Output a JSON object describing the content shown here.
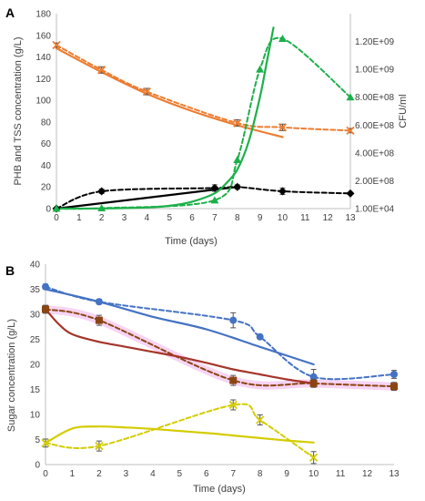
{
  "colors": {
    "orange": "#ED7D31",
    "green": "#1DB04A",
    "black": "#000000",
    "blue": "#4472C4",
    "darkred": "#A5352A",
    "brown": "#8B4513",
    "yellow": "#D4CC00",
    "pinkband": "#F4C6F0",
    "axis": "#BFBFBF",
    "errorbar": "#555555"
  },
  "chart_data": [
    {
      "type": "line",
      "panel_label": "A",
      "xlabel": "Time (days)",
      "ylabel": "PHB and TSS concentration (g/L)",
      "y2label": "CFU/ml",
      "xlim": [
        0,
        13
      ],
      "xticks": [
        "0",
        "1",
        "2",
        "3",
        "4",
        "5",
        "6",
        "7",
        "8",
        "9",
        "10",
        "11",
        "12",
        "13"
      ],
      "ylim": [
        0,
        180
      ],
      "yticks": [
        "0",
        "20",
        "40",
        "60",
        "80",
        "100",
        "120",
        "140",
        "160",
        "180"
      ],
      "y2lim": [
        10000,
        1400000000
      ],
      "y2ticks": [
        "1.00E+04",
        "2.00E+08",
        "4.00E+08",
        "6.00E+08",
        "8.00E+08",
        "1.00E+09",
        "1.20E+09"
      ],
      "grid": false,
      "series": [
        {
          "key": "tss_measured",
          "axis": "left",
          "color": "orange",
          "dash": true,
          "marker": "x",
          "x": [
            0,
            2,
            4,
            8,
            10,
            13
          ],
          "y": [
            151,
            128,
            108,
            79,
            75,
            72
          ],
          "err": [
            2,
            3,
            3,
            3,
            3,
            2
          ]
        },
        {
          "key": "tss_model",
          "axis": "left",
          "color": "orange",
          "dash": false,
          "marker": "none",
          "x": [
            0,
            2,
            4,
            6,
            8,
            10
          ],
          "y": [
            148,
            126,
            106,
            90,
            77,
            66
          ]
        },
        {
          "key": "phb_measured",
          "axis": "left",
          "color": "black",
          "dash": true,
          "marker": "diamond",
          "x": [
            0,
            2,
            7,
            8,
            10,
            13
          ],
          "y": [
            0,
            16,
            19,
            20,
            16,
            14
          ],
          "err": [
            0,
            2,
            3,
            2,
            3,
            0
          ]
        },
        {
          "key": "phb_model",
          "axis": "left",
          "color": "black",
          "dash": false,
          "marker": "none",
          "x": [
            0,
            8
          ],
          "y": [
            0,
            20
          ]
        },
        {
          "key": "cfu_measured",
          "axis": "right",
          "color": "green",
          "dash": true,
          "marker": "triangle",
          "x": [
            0,
            2,
            7,
            8,
            9,
            10,
            13
          ],
          "y": [
            10000,
            3000000,
            60000000,
            350000000,
            1000000000,
            1220000000,
            800000000
          ]
        },
        {
          "key": "cfu_model",
          "axis": "right",
          "color": "green",
          "dash": false,
          "marker": "none",
          "x": [
            0,
            2,
            4,
            5,
            6,
            7,
            7.5,
            8,
            8.5,
            9,
            9.3,
            9.6,
            9.8
          ],
          "y": [
            10000,
            1000000,
            8000000,
            20000000,
            50000000,
            110000000,
            180000000,
            280000000,
            480000000,
            800000000,
            1050000000,
            1300000000,
            1430000000
          ]
        }
      ]
    },
    {
      "type": "line",
      "panel_label": "B",
      "xlabel": "Time (days)",
      "ylabel": "Sugar concentration (g/L)",
      "xlim": [
        0,
        13
      ],
      "xticks": [
        "0",
        "1",
        "2",
        "3",
        "4",
        "5",
        "6",
        "7",
        "8",
        "9",
        "10",
        "11",
        "12",
        "13"
      ],
      "ylim": [
        0,
        40
      ],
      "yticks": [
        "0",
        "5",
        "10",
        "15",
        "20",
        "25",
        "30",
        "35",
        "40"
      ],
      "grid": false,
      "series": [
        {
          "key": "blue_measured",
          "color": "blue",
          "dash": true,
          "marker": "circle",
          "x": [
            0,
            2,
            7,
            8,
            10,
            13
          ],
          "y": [
            35.5,
            32.5,
            28.8,
            25.5,
            17.5,
            18
          ],
          "err": [
            0.5,
            0.5,
            1.5,
            0.3,
            1.5,
            0.8
          ]
        },
        {
          "key": "blue_model",
          "color": "blue",
          "dash": false,
          "marker": "none",
          "x": [
            0,
            2,
            4,
            6,
            8,
            10
          ],
          "y": [
            35,
            32.5,
            29.5,
            27,
            23.5,
            20
          ]
        },
        {
          "key": "red_measured",
          "color": "brown",
          "dash": true,
          "marker": "square",
          "x": [
            0,
            2,
            7,
            10,
            13
          ],
          "y": [
            31,
            28.8,
            16.8,
            16.2,
            15.6
          ],
          "err": [
            0.8,
            1,
            1,
            0.8,
            0.8
          ]
        },
        {
          "key": "red_model",
          "color": "darkred",
          "dash": false,
          "marker": "none",
          "x": [
            0,
            0.5,
            1,
            2,
            3,
            4,
            5,
            6,
            7,
            8,
            9,
            10
          ],
          "y": [
            31,
            28,
            26,
            24.5,
            23.5,
            22.5,
            21.5,
            20.3,
            19,
            18,
            17,
            16.2
          ]
        },
        {
          "key": "yellow_measured",
          "color": "yellow",
          "dash": true,
          "marker": "x",
          "x": [
            0,
            2,
            7,
            8,
            10
          ],
          "y": [
            4.3,
            3.7,
            11.9,
            8.9,
            1.4
          ],
          "err": [
            0.8,
            1,
            1,
            1,
            1.2
          ]
        },
        {
          "key": "yellow_model",
          "color": "yellow",
          "dash": false,
          "marker": "none",
          "x": [
            0,
            1,
            2,
            3,
            4,
            5,
            6,
            7,
            8,
            9,
            10
          ],
          "y": [
            4.3,
            7.2,
            7.6,
            7.4,
            7.1,
            6.7,
            6.3,
            5.8,
            5.3,
            4.8,
            4.4
          ]
        }
      ]
    }
  ]
}
